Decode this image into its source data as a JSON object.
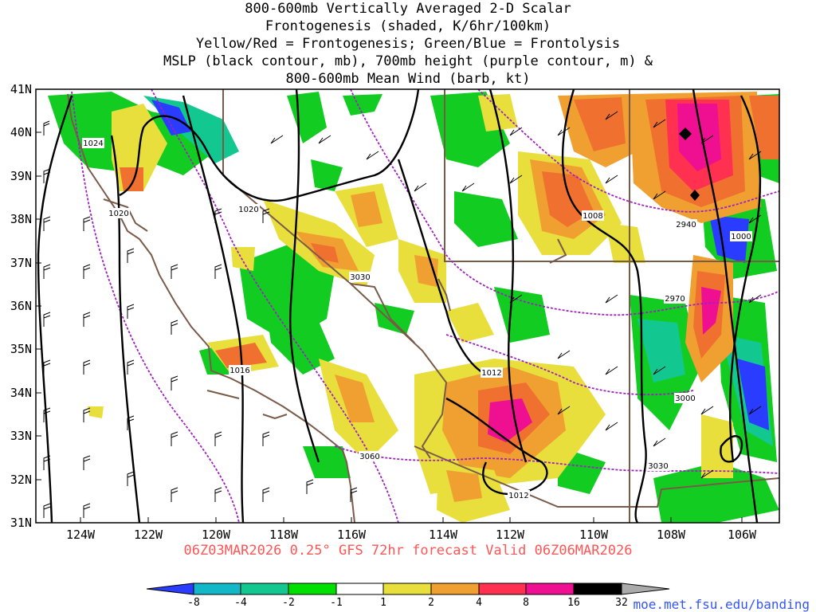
{
  "title_lines": [
    "800-600mb Vertically Averaged 2-D Scalar",
    "Frontogenesis (shaded, K/6hr/100km)",
    "Yellow/Red = Frontogenesis;  Green/Blue = Frontolysis",
    "MSLP (black contour, mb), 700mb height (purple contour, m) &",
    "800-600mb Mean Wind (barb, kt)"
  ],
  "subtitle": "06Z03MAR2026 0.25° GFS 72hr forecast Valid 06Z06MAR2026",
  "footer": "moe.met.fsu.edu/banding",
  "axes": {
    "lat_labels": [
      "41N",
      "40N",
      "39N",
      "38N",
      "37N",
      "36N",
      "35N",
      "34N",
      "33N",
      "32N",
      "31N"
    ],
    "lon_labels": [
      "124W",
      "122W",
      "120W",
      "118W",
      "116W",
      "114W",
      "112W",
      "110W",
      "108W",
      "106W"
    ]
  },
  "colorbar": {
    "labels": [
      "-8",
      "-4",
      "-2",
      "-1",
      "1",
      "2",
      "4",
      "8",
      "16",
      "32"
    ],
    "colors": [
      "#2a3cff",
      "#12b8c8",
      "#12c890",
      "#12cc22",
      "#00e000",
      "#ffffff",
      "#e8de3c",
      "#f0a030",
      "#f07030",
      "#ff3050",
      "#ee1090",
      "#000000",
      "#aaaaaa"
    ]
  },
  "mslp_labels": [
    "1024",
    "1020",
    "1020",
    "1016",
    "1012",
    "1012",
    "1008",
    "1000"
  ],
  "height_labels": [
    "3030",
    "3060",
    "3030",
    "3000",
    "2970",
    "2940"
  ],
  "colors": {
    "mslp_contour": "#000000",
    "height_contour": "#a020c0",
    "borders": "#7a5a48",
    "subtitle": "#ff5555",
    "footer": "#3355ff"
  }
}
